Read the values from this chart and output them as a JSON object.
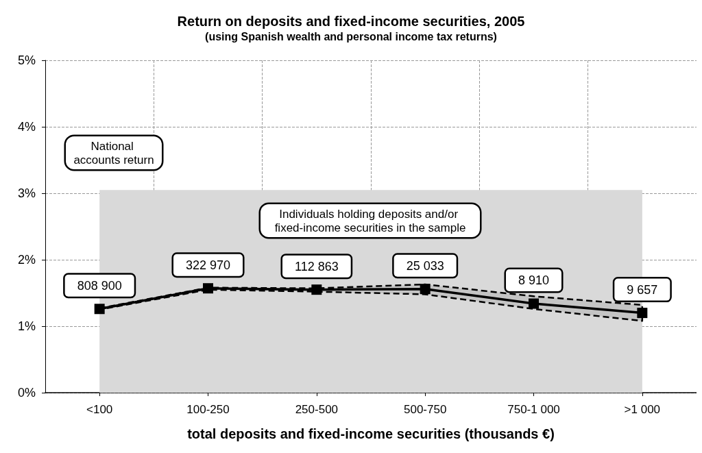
{
  "chart_data": {
    "type": "line",
    "title": "Return on deposits and fixed-income securities, 2005",
    "subtitle": "(using Spanish wealth and personal income tax returns)",
    "xlabel": "total deposits and fixed-income securities (thousands €)",
    "categories": [
      "<100",
      "100-250",
      "250-500",
      "500-750",
      "750-1 000",
      ">1 000"
    ],
    "series": [
      {
        "name": "National accounts return",
        "type": "area",
        "color": "#d9d9d9",
        "values": [
          3.05,
          3.05,
          3.05,
          3.05,
          3.05,
          3.05
        ]
      },
      {
        "name": "Individuals holding deposits and/or fixed-income securities in the sample",
        "color": "#000000",
        "marker": "square",
        "line_style": "solid",
        "values": [
          1.26,
          1.57,
          1.55,
          1.56,
          1.34,
          1.2
        ],
        "lower": [
          1.25,
          1.55,
          1.52,
          1.48,
          1.26,
          1.08
        ],
        "upper": [
          1.27,
          1.58,
          1.57,
          1.63,
          1.45,
          1.32
        ]
      }
    ],
    "annotations": [
      {
        "text": "808 900",
        "x": "<100",
        "y": 1.26
      },
      {
        "text": "322 970",
        "x": "100-250",
        "y": 1.57
      },
      {
        "text": "112 863",
        "x": "250-500",
        "y": 1.55
      },
      {
        "text": "25 033",
        "x": "500-750",
        "y": 1.56
      },
      {
        "text": "8 910",
        "x": "750-1 000",
        "y": 1.34
      },
      {
        "text": "9 657",
        "x": ">1 000",
        "y": 1.2
      }
    ],
    "ylim": [
      0,
      5
    ],
    "yticks": [
      {
        "value": 0,
        "label": "0%"
      },
      {
        "value": 1,
        "label": "1%"
      },
      {
        "value": 2,
        "label": "2%"
      },
      {
        "value": 3,
        "label": "3%"
      },
      {
        "value": 4,
        "label": "4%"
      },
      {
        "value": 5,
        "label": "5%"
      }
    ],
    "grid": true,
    "legend": false
  }
}
